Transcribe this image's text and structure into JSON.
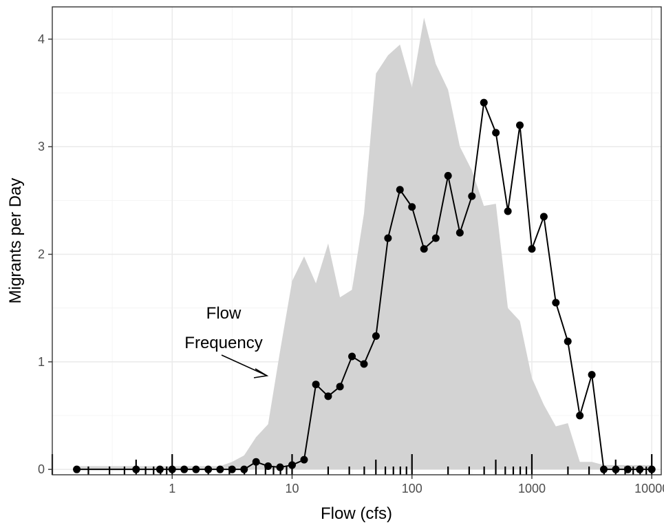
{
  "chart_data": {
    "type": "line",
    "xlabel": "Flow (cfs)",
    "ylabel": "Migrants per Day",
    "x_scale": "log10",
    "xlim": [
      0.1,
      12000
    ],
    "ylim": [
      -0.05,
      4.3
    ],
    "x_ticks": [
      1,
      10,
      100,
      1000,
      10000
    ],
    "x_tick_labels": [
      "1",
      "10",
      "100",
      "1000",
      "10000"
    ],
    "y_ticks": [
      0,
      1,
      2,
      3,
      4
    ],
    "y_tick_labels": [
      "0",
      "1",
      "2",
      "3",
      "4"
    ],
    "grid": true,
    "series": [
      {
        "kind": "line-points",
        "color": "#000000",
        "x": [
          0.16,
          0.5,
          0.79,
          1.0,
          1.26,
          1.58,
          2.0,
          2.51,
          3.16,
          3.98,
          5.01,
          6.31,
          7.94,
          10.0,
          12.6,
          15.8,
          20.0,
          25.1,
          31.6,
          39.8,
          50.1,
          63.1,
          79.4,
          100,
          126,
          158,
          200,
          251,
          316,
          398,
          501,
          631,
          794,
          1000,
          1259,
          1585,
          1995,
          2512,
          3162,
          3981,
          5012,
          6310,
          7943,
          10000
        ],
        "y": [
          0.0,
          0.0,
          0.0,
          0.0,
          0.0,
          0.0,
          0.0,
          0.0,
          0.0,
          0.0,
          0.07,
          0.03,
          0.02,
          0.04,
          0.09,
          0.79,
          0.68,
          0.77,
          1.05,
          0.98,
          1.24,
          2.15,
          2.6,
          2.44,
          2.05,
          2.15,
          2.73,
          2.2,
          2.54,
          3.41,
          3.13,
          2.4,
          3.2,
          2.05,
          2.35,
          1.55,
          1.19,
          0.5,
          0.88,
          0.0,
          0.0,
          0.0,
          0.0,
          0.0
        ]
      },
      {
        "kind": "area",
        "color": "#d3d3d3",
        "x": [
          0.16,
          1.0,
          2.51,
          3.16,
          3.98,
          5.01,
          6.31,
          7.94,
          10.0,
          12.6,
          15.8,
          20.0,
          25.1,
          31.6,
          39.8,
          50.1,
          63.1,
          79.4,
          100,
          126,
          158,
          200,
          251,
          316,
          398,
          501,
          631,
          794,
          1000,
          1259,
          1585,
          1995,
          2512,
          3162,
          3981,
          10000
        ],
        "y": [
          0.03,
          0.03,
          0.03,
          0.07,
          0.13,
          0.3,
          0.42,
          1.1,
          1.75,
          1.98,
          1.73,
          2.1,
          1.6,
          1.67,
          2.38,
          3.68,
          3.85,
          3.95,
          3.55,
          4.2,
          3.77,
          3.53,
          3.0,
          2.78,
          2.45,
          2.47,
          1.5,
          1.38,
          0.85,
          0.6,
          0.4,
          0.43,
          0.07,
          0.07,
          0.04,
          0.04
        ]
      }
    ],
    "annotations": [
      {
        "text": "Flow",
        "x": 3.3,
        "y": 1.4
      },
      {
        "text": "Frequency",
        "x": 3.3,
        "y": 1.1
      }
    ]
  }
}
